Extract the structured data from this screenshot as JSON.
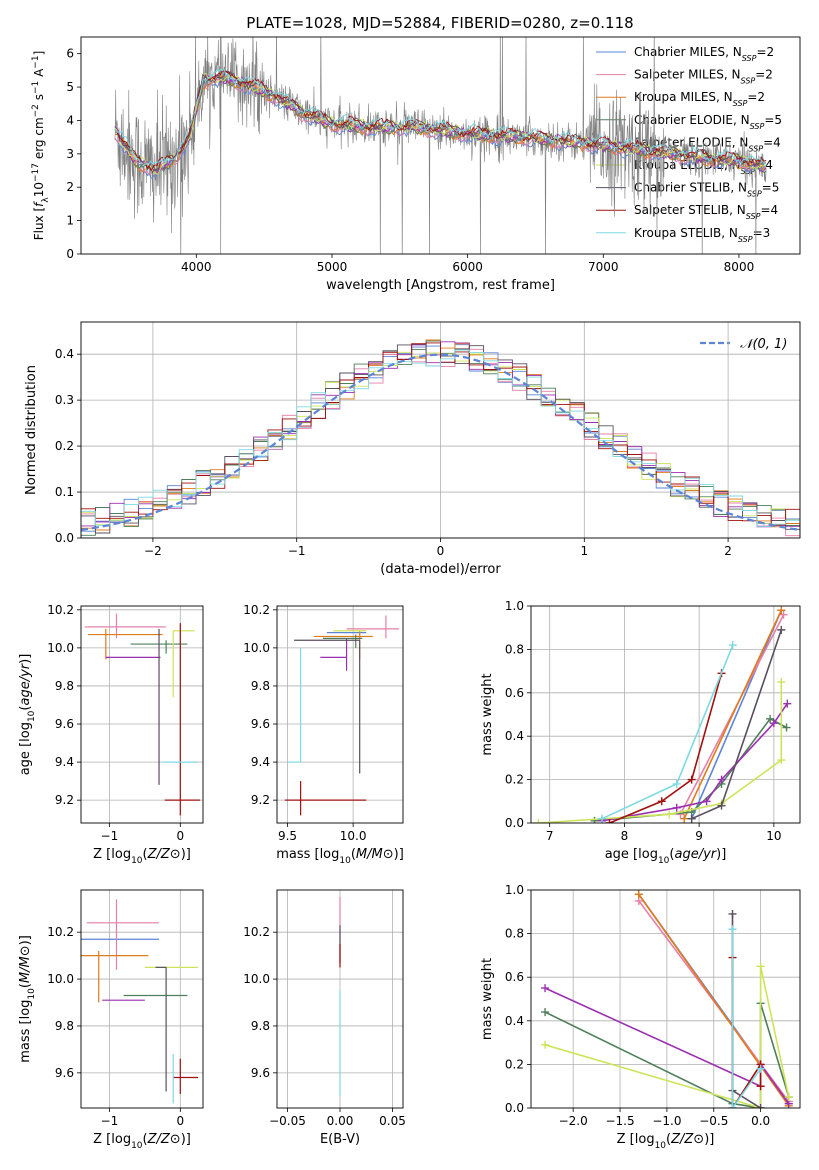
{
  "title": "PLATE=1028, MJD=52884, FIBERID=0280, z=0.118",
  "colors": {
    "cm": "#5b85d6",
    "sm": "#e87fa7",
    "km": "#e07b1a",
    "ce": "#4f7f5a",
    "se": "#9c2fb1",
    "ke": "#cde45a",
    "cs": "#5a4f5f",
    "ss": "#a0100f",
    "ks": "#7ed9e3",
    "data": "#7f7f7f"
  },
  "legend": {
    "spectrum": [
      {
        "key": "cm",
        "label": "Chabrier MILES, N",
        "n": "=2"
      },
      {
        "key": "sm",
        "label": "Salpeter MILES, N",
        "n": "=2"
      },
      {
        "key": "km",
        "label": "Kroupa MILES, N",
        "n": "=2"
      },
      {
        "key": "ce",
        "label": "Chabrier ELODIE, N",
        "n": "=5"
      },
      {
        "key": "se",
        "label": "Salpeter ELODIE, N",
        "n": "=4"
      },
      {
        "key": "ke",
        "label": "Kroupa ELODIE, N",
        "n": "=4"
      },
      {
        "key": "cs",
        "label": "Chabrier STELIB, N",
        "n": "=5"
      },
      {
        "key": "ss",
        "label": "Salpeter STELIB, N",
        "n": "=4"
      },
      {
        "key": "ks",
        "label": "Kroupa STELIB, N",
        "n": "=3"
      }
    ],
    "ssp_sub": "SSP",
    "normal": "𝒩(0, 1)"
  },
  "chart_data": [
    {
      "id": "spectrum",
      "type": "line",
      "xlabel": "wavelength [Angstrom, rest frame]",
      "ylabel": "Flux [f_λ10^-17 erg cm^-2 s^-1 A^-1]",
      "xlim": [
        3150,
        8450
      ],
      "ylim": [
        0,
        6.5
      ],
      "xticks": [
        4000,
        5000,
        6000,
        7000,
        8000
      ],
      "yticks": [
        0,
        1,
        2,
        3,
        4,
        5,
        6
      ],
      "model_shape": [
        [
          3400,
          3.7
        ],
        [
          3550,
          2.8
        ],
        [
          3700,
          2.5
        ],
        [
          3850,
          2.9
        ],
        [
          3950,
          3.5
        ],
        [
          4050,
          5.2
        ],
        [
          4200,
          5.3
        ],
        [
          4500,
          4.9
        ],
        [
          4800,
          4.2
        ],
        [
          5000,
          3.9
        ],
        [
          5300,
          3.8
        ],
        [
          5600,
          3.8
        ],
        [
          6000,
          3.6
        ],
        [
          6400,
          3.5
        ],
        [
          6800,
          3.35
        ],
        [
          7200,
          3.15
        ],
        [
          7600,
          2.95
        ],
        [
          7800,
          2.85
        ],
        [
          8000,
          2.8
        ],
        [
          8100,
          2.7
        ],
        [
          8200,
          2.6
        ]
      ],
      "series_keys": [
        "cm",
        "sm",
        "km",
        "ce",
        "se",
        "ke",
        "cs",
        "ss",
        "ks"
      ]
    },
    {
      "id": "residuals",
      "type": "step-histogram",
      "xlabel": "(data-model)/error",
      "ylabel": "Normed distribution",
      "xlim": [
        -2.5,
        2.5
      ],
      "ylim": [
        0,
        0.47
      ],
      "xticks": [
        -2,
        -1,
        0,
        1,
        2
      ],
      "yticks": [
        0.0,
        0.1,
        0.2,
        0.3,
        0.4
      ],
      "grid": true,
      "legend_position": "upper right",
      "normal_curve": {
        "mu": 0,
        "sigma": 1
      }
    },
    {
      "id": "age-vs-Z",
      "type": "errorbar",
      "xlabel": "Z [log10(Z/Z⊙)]",
      "ylabel": "age [log10(age/yr)]",
      "xlim": [
        -1.4,
        0.32
      ],
      "ylim": [
        9.08,
        10.22
      ],
      "xticks": [
        -1,
        0
      ],
      "yticks": [
        9.2,
        9.4,
        9.6,
        9.8,
        10.0,
        10.2
      ],
      "grid": true,
      "points": [
        {
          "key": "cm",
          "x": -0.6,
          "xerr": [
            0.7,
            0.35
          ],
          "y": 10.11,
          "yerr": [
            0.0,
            0.0
          ]
        },
        {
          "key": "sm",
          "x": -0.9,
          "xerr": [
            0.45,
            0.7
          ],
          "y": 10.11,
          "yerr": [
            0.06,
            0.07
          ]
        },
        {
          "key": "km",
          "x": -1.05,
          "xerr": [
            0.25,
            0.8
          ],
          "y": 10.07,
          "yerr": [
            0.13,
            0.03
          ]
        },
        {
          "key": "ce",
          "x": -0.2,
          "xerr": [
            0.5,
            0.3
          ],
          "y": 10.02,
          "yerr": [
            0.05,
            0.02
          ]
        },
        {
          "key": "se",
          "x": -0.6,
          "xerr": [
            0.45,
            0.32
          ],
          "y": 9.95,
          "yerr": [
            0.0,
            0.0
          ]
        },
        {
          "key": "ke",
          "x": -0.1,
          "xerr": [
            0.0,
            0.3
          ],
          "y": 10.09,
          "yerr": [
            0.35,
            0.0
          ]
        },
        {
          "key": "cs",
          "x": -0.3,
          "xerr": [
            0.0,
            0.0
          ],
          "y": 9.65,
          "yerr": [
            0.37,
            0.45
          ]
        },
        {
          "key": "ss",
          "x": 0.0,
          "xerr": [
            0.22,
            0.28
          ],
          "y": 9.2,
          "yerr": [
            0.08,
            0.93
          ]
        },
        {
          "key": "ks",
          "x": 0.0,
          "xerr": [
            0.25,
            0.25
          ],
          "y": 9.4,
          "yerr": [
            0.0,
            0.0
          ]
        }
      ]
    },
    {
      "id": "age-vs-mass",
      "type": "errorbar",
      "xlabel": "mass [log10(M/M⊙)]",
      "ylabel": "",
      "xlim": [
        9.42,
        10.38
      ],
      "ylim": [
        9.08,
        10.22
      ],
      "xticks": [
        9.5,
        10.0
      ],
      "yticks": [
        9.2,
        9.4,
        9.6,
        9.8,
        10.0,
        10.2
      ],
      "grid": true,
      "points": [
        {
          "key": "cm",
          "x": 10.05,
          "xerr": [
            0.25,
            0.05
          ],
          "y": 10.08,
          "yerr": [
            0.0,
            0.0
          ]
        },
        {
          "key": "sm",
          "x": 10.25,
          "xerr": [
            0.3,
            0.1
          ],
          "y": 10.1,
          "yerr": [
            0.05,
            0.07
          ]
        },
        {
          "key": "km",
          "x": 10.05,
          "xerr": [
            0.35,
            0.1
          ],
          "y": 10.06,
          "yerr": [
            0.12,
            0.03
          ]
        },
        {
          "key": "ce",
          "x": 10.02,
          "xerr": [
            0.25,
            0.05
          ],
          "y": 10.05,
          "yerr": [
            0.05,
            0.02
          ]
        },
        {
          "key": "se",
          "x": 9.95,
          "xerr": [
            0.2,
            0.0
          ],
          "y": 9.95,
          "yerr": [
            0.07,
            0.1
          ]
        },
        {
          "key": "ke",
          "x": 10.1,
          "xerr": [
            0.25,
            0.0
          ],
          "y": 10.09,
          "yerr": [
            0.0,
            0.0
          ]
        },
        {
          "key": "cs",
          "x": 10.05,
          "xerr": [
            0.5,
            0.0
          ],
          "y": 10.04,
          "yerr": [
            0.7,
            0.0
          ]
        },
        {
          "key": "ss",
          "x": 9.6,
          "xerr": [
            0.12,
            0.5
          ],
          "y": 9.2,
          "yerr": [
            0.08,
            0.1
          ]
        },
        {
          "key": "ks",
          "x": 9.6,
          "xerr": [
            0.1,
            0.0
          ],
          "y": 9.4,
          "yerr": [
            0.0,
            0.6
          ]
        }
      ]
    },
    {
      "id": "weight-vs-age",
      "type": "line",
      "xlabel": "age [log10(age/yr)]",
      "ylabel": "mass weight",
      "xlim": [
        6.75,
        10.35
      ],
      "ylim": [
        0,
        1.0
      ],
      "xticks": [
        7,
        8,
        9,
        10
      ],
      "yticks": [
        0.0,
        0.2,
        0.4,
        0.6,
        0.8,
        1.0
      ],
      "grid": true,
      "series": [
        {
          "key": "cm",
          "x": [
            8.9,
            10.1
          ],
          "y": [
            0.02,
            0.98
          ]
        },
        {
          "key": "sm",
          "x": [
            8.75,
            10.13
          ],
          "y": [
            0.04,
            0.96
          ]
        },
        {
          "key": "km",
          "x": [
            8.8,
            10.1
          ],
          "y": [
            0.02,
            0.98
          ]
        },
        {
          "key": "ce",
          "x": [
            7.6,
            8.9,
            9.3,
            9.95,
            10.17
          ],
          "y": [
            0.01,
            0.05,
            0.18,
            0.48,
            0.44
          ]
        },
        {
          "key": "se",
          "x": [
            7.7,
            8.7,
            9.1,
            9.3,
            10.0,
            10.18
          ],
          "y": [
            0.01,
            0.07,
            0.1,
            0.2,
            0.46,
            0.55
          ]
        },
        {
          "key": "ke",
          "x": [
            6.85,
            8.6,
            9.3,
            10.1,
            10.1
          ],
          "y": [
            0.0,
            0.04,
            0.09,
            0.29,
            0.65
          ]
        },
        {
          "key": "cs",
          "x": [
            8.9,
            9.3,
            10.1
          ],
          "y": [
            0.02,
            0.08,
            0.89
          ]
        },
        {
          "key": "ss",
          "x": [
            7.8,
            8.5,
            8.9,
            9.3
          ],
          "y": [
            0.0,
            0.1,
            0.2,
            0.69
          ]
        },
        {
          "key": "ks",
          "x": [
            7.7,
            8.7,
            9.45
          ],
          "y": [
            0.02,
            0.18,
            0.82
          ]
        }
      ]
    },
    {
      "id": "mass-vs-Z",
      "type": "errorbar",
      "xlabel": "Z [log10(Z/Z⊙)]",
      "ylabel": "mass [log10(M/M⊙)]",
      "xlim": [
        -1.4,
        0.32
      ],
      "ylim": [
        9.45,
        10.38
      ],
      "xticks": [
        -1,
        0
      ],
      "yticks": [
        9.6,
        9.8,
        10.0,
        10.2
      ],
      "grid": true,
      "points": [
        {
          "key": "cm",
          "x": -1.1,
          "xerr": [
            0.3,
            0.8
          ],
          "y": 10.17,
          "yerr": [
            0.0,
            0.0
          ]
        },
        {
          "key": "sm",
          "x": -0.9,
          "xerr": [
            0.42,
            0.6
          ],
          "y": 10.24,
          "yerr": [
            0.2,
            0.1
          ]
        },
        {
          "key": "km",
          "x": -1.15,
          "xerr": [
            0.25,
            0.7
          ],
          "y": 10.1,
          "yerr": [
            0.2,
            0.02
          ]
        },
        {
          "key": "ce",
          "x": -0.5,
          "xerr": [
            0.3,
            0.6
          ],
          "y": 9.93,
          "yerr": [
            0.0,
            0.0
          ]
        },
        {
          "key": "se",
          "x": -0.5,
          "xerr": [
            0.6,
            0.0
          ],
          "y": 9.91,
          "yerr": [
            0.0,
            0.0
          ]
        },
        {
          "key": "ke",
          "x": -0.1,
          "xerr": [
            0.4,
            0.35
          ],
          "y": 10.05,
          "yerr": [
            0.0,
            0.0
          ]
        },
        {
          "key": "cs",
          "x": -0.2,
          "xerr": [
            0.15,
            0.0
          ],
          "y": 10.05,
          "yerr": [
            0.53,
            0.0
          ]
        },
        {
          "key": "ss",
          "x": 0.0,
          "xerr": [
            0.1,
            0.25
          ],
          "y": 9.58,
          "yerr": [
            0.07,
            0.08
          ]
        },
        {
          "key": "ks",
          "x": -0.1,
          "xerr": [
            0.0,
            0.0
          ],
          "y": 9.6,
          "yerr": [
            0.13,
            0.08
          ]
        }
      ]
    },
    {
      "id": "mass-vs-EBV",
      "type": "errorbar",
      "xlabel": "E(B-V)",
      "ylabel": "",
      "xlim": [
        -0.06,
        0.06
      ],
      "ylim": [
        9.45,
        10.38
      ],
      "xticks": [
        -0.05,
        0.0,
        0.05
      ],
      "yticks": [
        9.6,
        9.8,
        10.0,
        10.2
      ],
      "grid": true,
      "points": [
        {
          "key": "sm",
          "x": 0.0,
          "xerr": [
            0.0,
            0.0
          ],
          "y": 10.2,
          "yerr": [
            0.15,
            0.15
          ]
        },
        {
          "key": "cs",
          "x": 0.0,
          "xerr": [
            0.0,
            0.0
          ],
          "y": 10.15,
          "yerr": [
            0.08,
            0.08
          ]
        },
        {
          "key": "ss",
          "x": 0.0,
          "xerr": [
            0.0,
            0.0
          ],
          "y": 10.1,
          "yerr": [
            0.05,
            0.05
          ]
        },
        {
          "key": "ks",
          "x": 0.0,
          "xerr": [
            0.0,
            0.0
          ],
          "y": 9.75,
          "yerr": [
            0.25,
            0.2
          ]
        }
      ]
    },
    {
      "id": "weight-vs-Z",
      "type": "line",
      "xlabel": "Z [log10(Z/Z⊙)]",
      "ylabel": "mass weight",
      "xlim": [
        -2.45,
        0.42
      ],
      "ylim": [
        0,
        1.0
      ],
      "xticks": [
        -2.0,
        -1.5,
        -1.0,
        -0.5,
        0.0
      ],
      "yticks": [
        0.0,
        0.2,
        0.4,
        0.6,
        0.8,
        1.0
      ],
      "grid": true,
      "series": [
        {
          "key": "cm",
          "x": [
            -1.3,
            0.3
          ],
          "y": [
            0.98,
            0.02
          ]
        },
        {
          "key": "sm",
          "x": [
            -1.3,
            0.3
          ],
          "y": [
            0.95,
            0.03
          ]
        },
        {
          "key": "km",
          "x": [
            -1.3,
            0.3
          ],
          "y": [
            0.98,
            0.01
          ]
        },
        {
          "key": "ce",
          "x": [
            -2.3,
            -0.3,
            0.0,
            0.0,
            0.3
          ],
          "y": [
            0.44,
            0.02,
            0.0,
            0.48,
            0.05
          ]
        },
        {
          "key": "se",
          "x": [
            -2.3,
            0.0,
            0.0,
            0.3
          ],
          "y": [
            0.55,
            0.1,
            0.2,
            0.02
          ]
        },
        {
          "key": "ke",
          "x": [
            -2.3,
            0.0,
            0.0,
            0.3
          ],
          "y": [
            0.29,
            0.0,
            0.65,
            0.05
          ]
        },
        {
          "key": "cs",
          "x": [
            -0.3,
            -0.3,
            0.0
          ],
          "y": [
            0.89,
            0.08,
            0.0
          ]
        },
        {
          "key": "ss",
          "x": [
            -0.3,
            -0.3,
            0.0,
            0.0
          ],
          "y": [
            0.69,
            0.0,
            0.2,
            0.1
          ]
        },
        {
          "key": "ks",
          "x": [
            -0.3,
            -0.3,
            0.0
          ],
          "y": [
            0.82,
            0.0,
            0.18
          ]
        }
      ]
    }
  ]
}
